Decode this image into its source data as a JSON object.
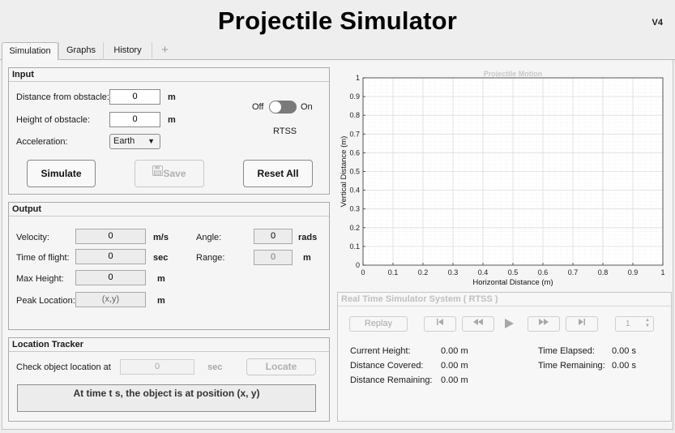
{
  "header": {
    "title": "Projectile Simulator",
    "version": "V4"
  },
  "tabs": [
    {
      "label": "Simulation",
      "active": true
    },
    {
      "label": "Graphs",
      "active": false
    },
    {
      "label": "History",
      "active": false
    }
  ],
  "add_tab_symbol": "+",
  "input": {
    "title": "Input",
    "distance_label": "Distance from obstacle:",
    "distance_value": "0",
    "distance_unit": "m",
    "height_label": "Height of obstacle:",
    "height_value": "0",
    "height_unit": "m",
    "acceleration_label": "Acceleration:",
    "acceleration_value": "Earth",
    "toggle_off": "Off",
    "toggle_on": "On",
    "rtss_label": "RTSS",
    "simulate": "Simulate",
    "save": "Save",
    "reset": "Reset All"
  },
  "output": {
    "title": "Output",
    "velocity_label": "Velocity:",
    "velocity_value": "0",
    "velocity_unit": "m/s",
    "tof_label": "Time of flight:",
    "tof_value": "0",
    "tof_unit": "sec",
    "maxh_label": "Max Height:",
    "maxh_value": "0",
    "maxh_unit": "m",
    "peak_label": "Peak Location:",
    "peak_value": "(x,y)",
    "peak_unit": "m",
    "angle_label": "Angle:",
    "angle_value": "0",
    "angle_unit": "rads",
    "range_label": "Range:",
    "range_value": "0",
    "range_unit": "m"
  },
  "tracker": {
    "title": "Location Tracker",
    "check_label": "Check object location at",
    "time_value": "0",
    "time_unit": "sec",
    "locate": "Locate",
    "message": "At time t s, the object is at position (x, y)"
  },
  "chart_data": {
    "type": "line",
    "title": "Projectile Motion",
    "xlabel": "Horizontal Distance (m)",
    "ylabel": "Vertical Distance (m)",
    "xlim": [
      0,
      1
    ],
    "ylim": [
      0,
      1
    ],
    "xticks": [
      "0",
      "0.1",
      "0.2",
      "0.3",
      "0.4",
      "0.5",
      "0.6",
      "0.7",
      "0.8",
      "0.9",
      "1"
    ],
    "yticks": [
      "0",
      "0.1",
      "0.2",
      "0.3",
      "0.4",
      "0.5",
      "0.6",
      "0.7",
      "0.8",
      "0.9",
      "1"
    ],
    "grid": true,
    "minor_grid": true,
    "series": []
  },
  "rtss": {
    "title": "Real Time Simulator System ( RTSS )",
    "replay": "Replay",
    "speed_value": "1",
    "current_height_label": "Current Height:",
    "current_height_value": "0.00 m",
    "distance_covered_label": "Distance Covered:",
    "distance_covered_value": "0.00 m",
    "distance_remaining_label": "Distance Remaining:",
    "distance_remaining_value": "0.00 m",
    "time_elapsed_label": "Time Elapsed:",
    "time_elapsed_value": "0.00 s",
    "time_remaining_label": "Time Remaining:",
    "time_remaining_value": "0.00 s"
  },
  "icons": {
    "dropdown": "chevron-down-icon",
    "save": "floppy-disk-icon",
    "skip_back": "skip-back-icon",
    "rewind": "rewind-icon",
    "play": "play-icon",
    "fast_forward": "fast-forward-icon",
    "skip_forward": "skip-forward-icon"
  },
  "colors": {
    "grid_major": "#dcdcdc",
    "grid_minor": "#ececec",
    "title_disabled": "#c8c8c8"
  }
}
